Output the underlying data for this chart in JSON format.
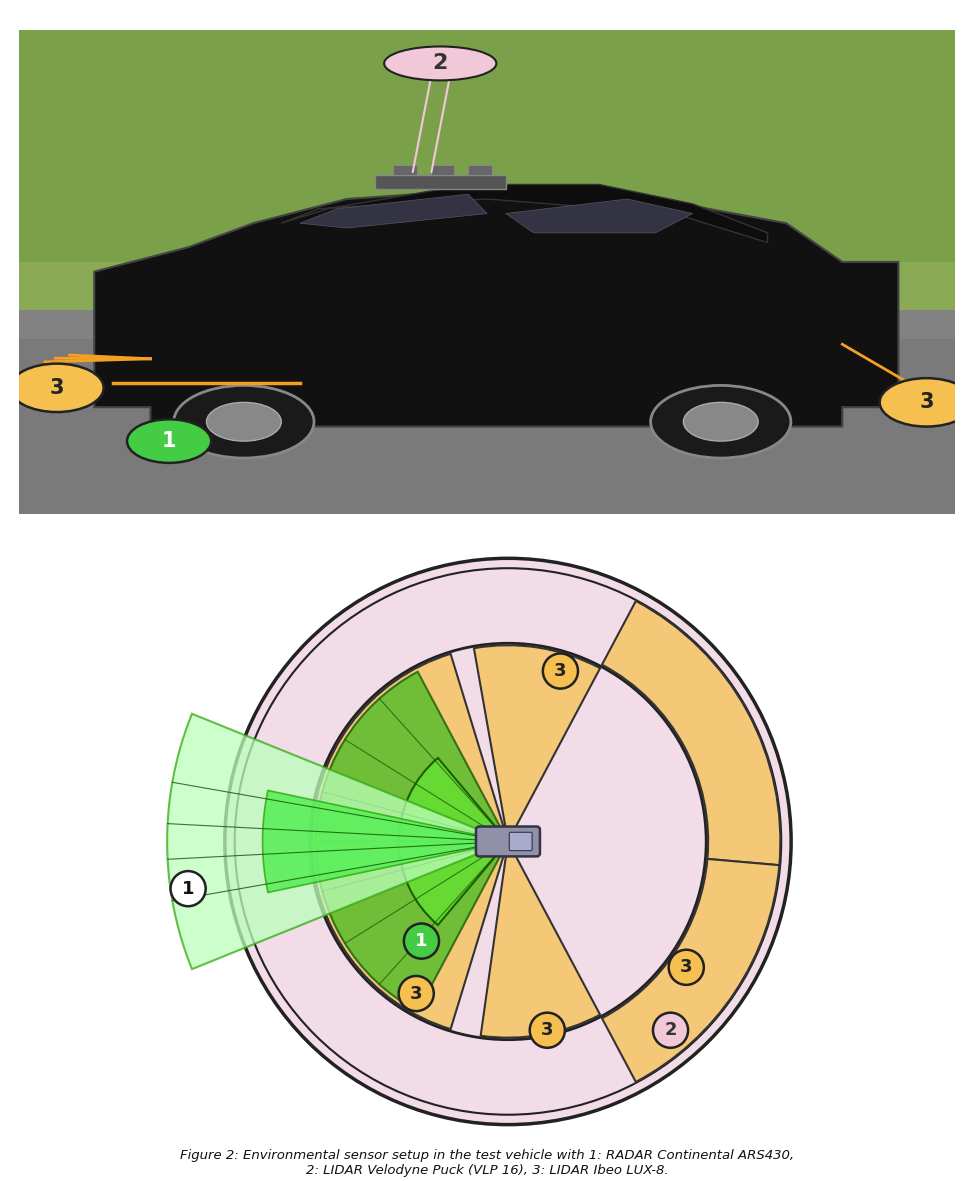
{
  "fig_width": 9.74,
  "fig_height": 11.81,
  "dpi": 100,
  "outer_circle_fill": "#f2dce8",
  "outer_circle_edge": "#222222",
  "inner_circle_fill": "#f2dce8",
  "radar_orange": "#f5c878",
  "radar_orange_edge": "#333333",
  "green_dark": "#44bb22",
  "green_light": "#88ee66",
  "green_cone_fill": "#aaffaa",
  "green_cone_edge": "#33aa11",
  "car_fill": "#9090a8",
  "car_edge": "#333344",
  "label_green_fill": "#44cc44",
  "label_orange_fill": "#f5c050",
  "label_pink_fill": "#f0c8d8",
  "label_edge": "#222222",
  "annotation_orange": "#f5a020",
  "annotation_green": "#44cc44",
  "photo_grass_top": "#8aaa55",
  "photo_grass_bot": "#6a8a35",
  "photo_tarmac": "#7a7a7a",
  "photo_car_body": "#111111",
  "photo_car_edge": "#444444"
}
